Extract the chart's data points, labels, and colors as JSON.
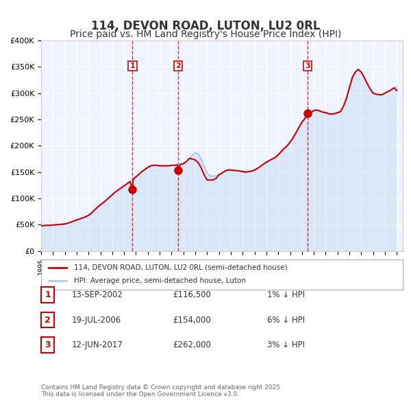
{
  "title": "114, DEVON ROAD, LUTON, LU2 0RL",
  "subtitle": "Price paid vs. HM Land Registry's House Price Index (HPI)",
  "title_fontsize": 12,
  "subtitle_fontsize": 10,
  "background_color": "#ffffff",
  "plot_background_color": "#f0f4ff",
  "grid_color": "#ffffff",
  "ylim": [
    0,
    400000
  ],
  "yticks": [
    0,
    50000,
    100000,
    150000,
    200000,
    250000,
    300000,
    350000,
    400000
  ],
  "ytick_labels": [
    "£0",
    "£50K",
    "£100K",
    "£150K",
    "£200K",
    "£250K",
    "£300K",
    "£350K",
    "£400K"
  ],
  "xlim_start": 1995.0,
  "xlim_end": 2025.5,
  "red_line_color": "#cc0000",
  "blue_line_color": "#aaccee",
  "sale_marker_color": "#cc0000",
  "sale_marker_size": 8,
  "dashed_line_color": "#cc0000",
  "legend_label_red": "114, DEVON ROAD, LUTON, LU2 0RL (semi-detached house)",
  "legend_label_blue": "HPI: Average price, semi-detached house, Luton",
  "transactions": [
    {
      "num": 1,
      "date_str": "13-SEP-2002",
      "date_x": 2002.71,
      "price": 116500,
      "label": "1% ↓ HPI"
    },
    {
      "num": 2,
      "date_str": "19-JUL-2006",
      "date_x": 2006.55,
      "price": 154000,
      "label": "6% ↓ HPI"
    },
    {
      "num": 3,
      "date_str": "12-JUN-2017",
      "date_x": 2017.45,
      "price": 262000,
      "label": "3% ↓ HPI"
    }
  ],
  "footnote": "Contains HM Land Registry data © Crown copyright and database right 2025.\nThis data is licensed under the Open Government Licence v3.0.",
  "hpi_data_x": [
    1995.0,
    1995.25,
    1995.5,
    1995.75,
    1996.0,
    1996.25,
    1996.5,
    1996.75,
    1997.0,
    1997.25,
    1997.5,
    1997.75,
    1998.0,
    1998.25,
    1998.5,
    1998.75,
    1999.0,
    1999.25,
    1999.5,
    1999.75,
    2000.0,
    2000.25,
    2000.5,
    2000.75,
    2001.0,
    2001.25,
    2001.5,
    2001.75,
    2002.0,
    2002.25,
    2002.5,
    2002.75,
    2003.0,
    2003.25,
    2003.5,
    2003.75,
    2004.0,
    2004.25,
    2004.5,
    2004.75,
    2005.0,
    2005.25,
    2005.5,
    2005.75,
    2006.0,
    2006.25,
    2006.5,
    2006.75,
    2007.0,
    2007.25,
    2007.5,
    2007.75,
    2008.0,
    2008.25,
    2008.5,
    2008.75,
    2009.0,
    2009.25,
    2009.5,
    2009.75,
    2010.0,
    2010.25,
    2010.5,
    2010.75,
    2011.0,
    2011.25,
    2011.5,
    2011.75,
    2012.0,
    2012.25,
    2012.5,
    2012.75,
    2013.0,
    2013.25,
    2013.5,
    2013.75,
    2014.0,
    2014.25,
    2014.5,
    2014.75,
    2015.0,
    2015.25,
    2015.5,
    2015.75,
    2016.0,
    2016.25,
    2016.5,
    2016.75,
    2017.0,
    2017.25,
    2017.5,
    2017.75,
    2018.0,
    2018.25,
    2018.5,
    2018.75,
    2019.0,
    2019.25,
    2019.5,
    2019.75,
    2020.0,
    2020.25,
    2020.5,
    2020.75,
    2021.0,
    2021.25,
    2021.5,
    2021.75,
    2022.0,
    2022.25,
    2022.5,
    2022.75,
    2023.0,
    2023.25,
    2023.5,
    2023.75,
    2024.0,
    2024.25,
    2024.5,
    2024.75,
    2025.0
  ],
  "hpi_data_y": [
    48000,
    48500,
    49000,
    49000,
    49500,
    50000,
    50500,
    51000,
    51500,
    53000,
    55000,
    57000,
    59000,
    61000,
    63000,
    65000,
    68000,
    72000,
    78000,
    83000,
    88000,
    92000,
    97000,
    102000,
    107000,
    112000,
    116000,
    120000,
    124000,
    128000,
    132000,
    136000,
    141000,
    146000,
    151000,
    155000,
    159000,
    162000,
    163000,
    163000,
    162000,
    162000,
    162000,
    162000,
    163000,
    163000,
    164000,
    165000,
    166000,
    170000,
    176000,
    182000,
    187000,
    185000,
    175000,
    160000,
    148000,
    143000,
    142000,
    143000,
    145000,
    148000,
    152000,
    154000,
    154000,
    153000,
    153000,
    152000,
    151000,
    150000,
    151000,
    152000,
    154000,
    157000,
    161000,
    165000,
    169000,
    172000,
    175000,
    178000,
    183000,
    189000,
    195000,
    200000,
    207000,
    215000,
    225000,
    235000,
    245000,
    252000,
    258000,
    263000,
    267000,
    268000,
    266000,
    264000,
    263000,
    261000,
    260000,
    261000,
    263000,
    265000,
    275000,
    290000,
    310000,
    330000,
    340000,
    345000,
    340000,
    330000,
    318000,
    308000,
    300000,
    298000,
    297000,
    297000,
    300000,
    303000,
    306000,
    310000,
    312000
  ],
  "price_data_x": [
    1995.0,
    1995.25,
    1995.5,
    1995.75,
    1996.0,
    1996.25,
    1996.5,
    1996.75,
    1997.0,
    1997.25,
    1997.5,
    1997.75,
    1998.0,
    1998.25,
    1998.5,
    1998.75,
    1999.0,
    1999.25,
    1999.5,
    1999.75,
    2000.0,
    2000.25,
    2000.5,
    2000.75,
    2001.0,
    2001.25,
    2001.5,
    2001.75,
    2002.0,
    2002.25,
    2002.5,
    2002.71,
    2002.75,
    2003.0,
    2003.25,
    2003.5,
    2003.75,
    2004.0,
    2004.25,
    2004.5,
    2004.75,
    2005.0,
    2005.25,
    2005.5,
    2005.75,
    2006.0,
    2006.25,
    2006.5,
    2006.55,
    2006.75,
    2007.0,
    2007.25,
    2007.5,
    2007.75,
    2008.0,
    2008.25,
    2008.5,
    2008.75,
    2009.0,
    2009.25,
    2009.5,
    2009.75,
    2010.0,
    2010.25,
    2010.5,
    2010.75,
    2011.0,
    2011.25,
    2011.5,
    2011.75,
    2012.0,
    2012.25,
    2012.5,
    2012.75,
    2013.0,
    2013.25,
    2013.5,
    2013.75,
    2014.0,
    2014.25,
    2014.5,
    2014.75,
    2015.0,
    2015.25,
    2015.5,
    2015.75,
    2016.0,
    2016.25,
    2016.5,
    2016.75,
    2017.0,
    2017.25,
    2017.45,
    2017.75,
    2018.0,
    2018.25,
    2018.5,
    2018.75,
    2019.0,
    2019.25,
    2019.5,
    2019.75,
    2020.0,
    2020.25,
    2020.5,
    2020.75,
    2021.0,
    2021.25,
    2021.5,
    2021.75,
    2022.0,
    2022.25,
    2022.5,
    2022.75,
    2023.0,
    2023.25,
    2023.5,
    2023.75,
    2024.0,
    2024.25,
    2024.5,
    2024.75,
    2025.0
  ],
  "price_data_y": [
    48000,
    48500,
    49000,
    49000,
    49500,
    50000,
    50500,
    51000,
    51500,
    53000,
    55000,
    57000,
    59000,
    61000,
    63000,
    65000,
    68000,
    72000,
    78000,
    83000,
    88000,
    92000,
    97000,
    102000,
    107000,
    112000,
    116000,
    120000,
    124000,
    128000,
    132000,
    116500,
    136000,
    141000,
    146000,
    151000,
    155000,
    159000,
    162000,
    163000,
    163000,
    162000,
    162000,
    162000,
    162000,
    163000,
    163000,
    164000,
    154000,
    165000,
    166000,
    170000,
    176000,
    175000,
    173000,
    168000,
    158000,
    145000,
    135000,
    135000,
    135000,
    138000,
    145000,
    148000,
    152000,
    154000,
    154000,
    153000,
    153000,
    152000,
    151000,
    150000,
    151000,
    152000,
    154000,
    157000,
    161000,
    165000,
    169000,
    172000,
    175000,
    178000,
    183000,
    189000,
    195000,
    200000,
    207000,
    215000,
    225000,
    235000,
    245000,
    252000,
    262000,
    263000,
    267000,
    268000,
    266000,
    264000,
    263000,
    261000,
    260000,
    261000,
    263000,
    265000,
    275000,
    290000,
    310000,
    330000,
    340000,
    345000,
    340000,
    330000,
    318000,
    308000,
    300000,
    298000,
    297000,
    297000,
    300000,
    303000,
    306000,
    310000,
    305000
  ]
}
